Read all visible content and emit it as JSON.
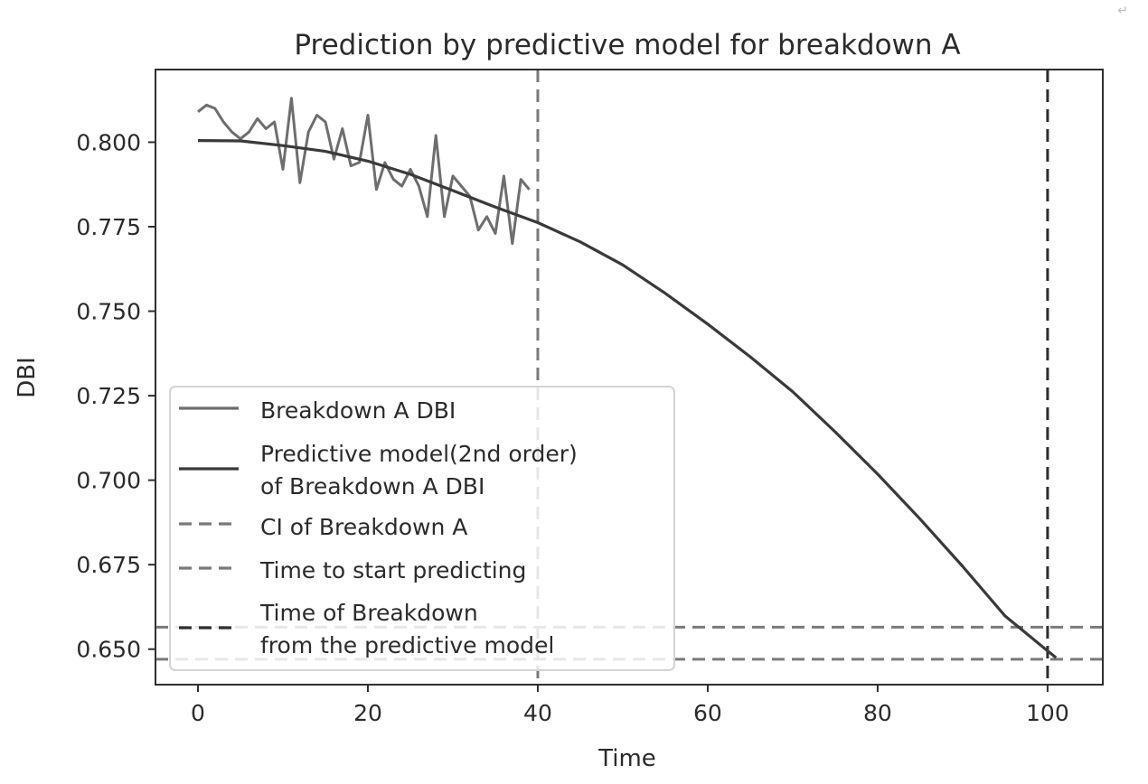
{
  "chart_data": {
    "type": "line",
    "title": "Prediction by predictive model for breakdown A",
    "xlabel": "Time",
    "ylabel": "DBI",
    "xlim": [
      -5,
      106.5
    ],
    "ylim": [
      0.6395,
      0.8215
    ],
    "x_ticks": [
      0,
      20,
      40,
      60,
      80,
      100
    ],
    "y_ticks": [
      0.65,
      0.675,
      0.7,
      0.725,
      0.75,
      0.775,
      0.8
    ],
    "x_tick_labels": [
      "0",
      "20",
      "40",
      "60",
      "80",
      "100"
    ],
    "y_tick_labels": [
      "0.650",
      "0.675",
      "0.700",
      "0.725",
      "0.750",
      "0.775",
      "0.800"
    ],
    "grid": false,
    "legend_position": "lower-left",
    "series": [
      {
        "name": "Breakdown A DBI",
        "color": "#6e6e6e",
        "style": "solid",
        "x": [
          0,
          1,
          2,
          3,
          4,
          5,
          6,
          7,
          8,
          9,
          10,
          11,
          12,
          13,
          14,
          15,
          16,
          17,
          18,
          19,
          20,
          21,
          22,
          23,
          24,
          25,
          26,
          27,
          28,
          29,
          30,
          31,
          32,
          33,
          34,
          35,
          36,
          37,
          38,
          39
        ],
        "y": [
          0.809,
          0.811,
          0.81,
          0.806,
          0.803,
          0.801,
          0.803,
          0.807,
          0.804,
          0.806,
          0.792,
          0.813,
          0.788,
          0.803,
          0.808,
          0.806,
          0.795,
          0.804,
          0.793,
          0.794,
          0.808,
          0.786,
          0.794,
          0.789,
          0.787,
          0.792,
          0.787,
          0.778,
          0.802,
          0.778,
          0.79,
          0.787,
          0.784,
          0.774,
          0.778,
          0.773,
          0.79,
          0.77,
          0.789,
          0.786
        ]
      },
      {
        "name": "Predictive model(2nd order)\n of Breakdown A DBI",
        "color": "#3a3a3a",
        "style": "solid",
        "x": [
          0,
          5,
          10,
          15,
          20,
          25,
          30,
          35,
          40,
          45,
          50,
          55,
          60,
          65,
          70,
          75,
          80,
          85,
          90,
          95,
          100,
          101
        ],
        "y": [
          0.8005,
          0.8004,
          0.799,
          0.7973,
          0.7944,
          0.7905,
          0.7857,
          0.7808,
          0.7762,
          0.7705,
          0.7637,
          0.7553,
          0.7462,
          0.7365,
          0.7262,
          0.7143,
          0.7018,
          0.6885,
          0.6745,
          0.6598,
          0.6495,
          0.6475
        ]
      }
    ],
    "reference_lines": [
      {
        "name": "CI of Breakdown A",
        "orientation": "horizontal",
        "value": 0.6565,
        "color": "#7a7a7a",
        "style": "dashed",
        "in_legend": true
      },
      {
        "name": "CI of Breakdown A",
        "orientation": "horizontal",
        "value": 0.647,
        "color": "#7a7a7a",
        "style": "dashed",
        "in_legend": false
      },
      {
        "name": "Time to start predicting",
        "orientation": "vertical",
        "value": 40,
        "color": "#7a7a7a",
        "style": "dashed",
        "in_legend": true
      },
      {
        "name": "Time of Breakdown\n from the predictive model",
        "orientation": "vertical",
        "value": 100,
        "color": "#2e2e2e",
        "style": "dashed",
        "in_legend": true
      }
    ]
  },
  "corner_glyph": "↵"
}
